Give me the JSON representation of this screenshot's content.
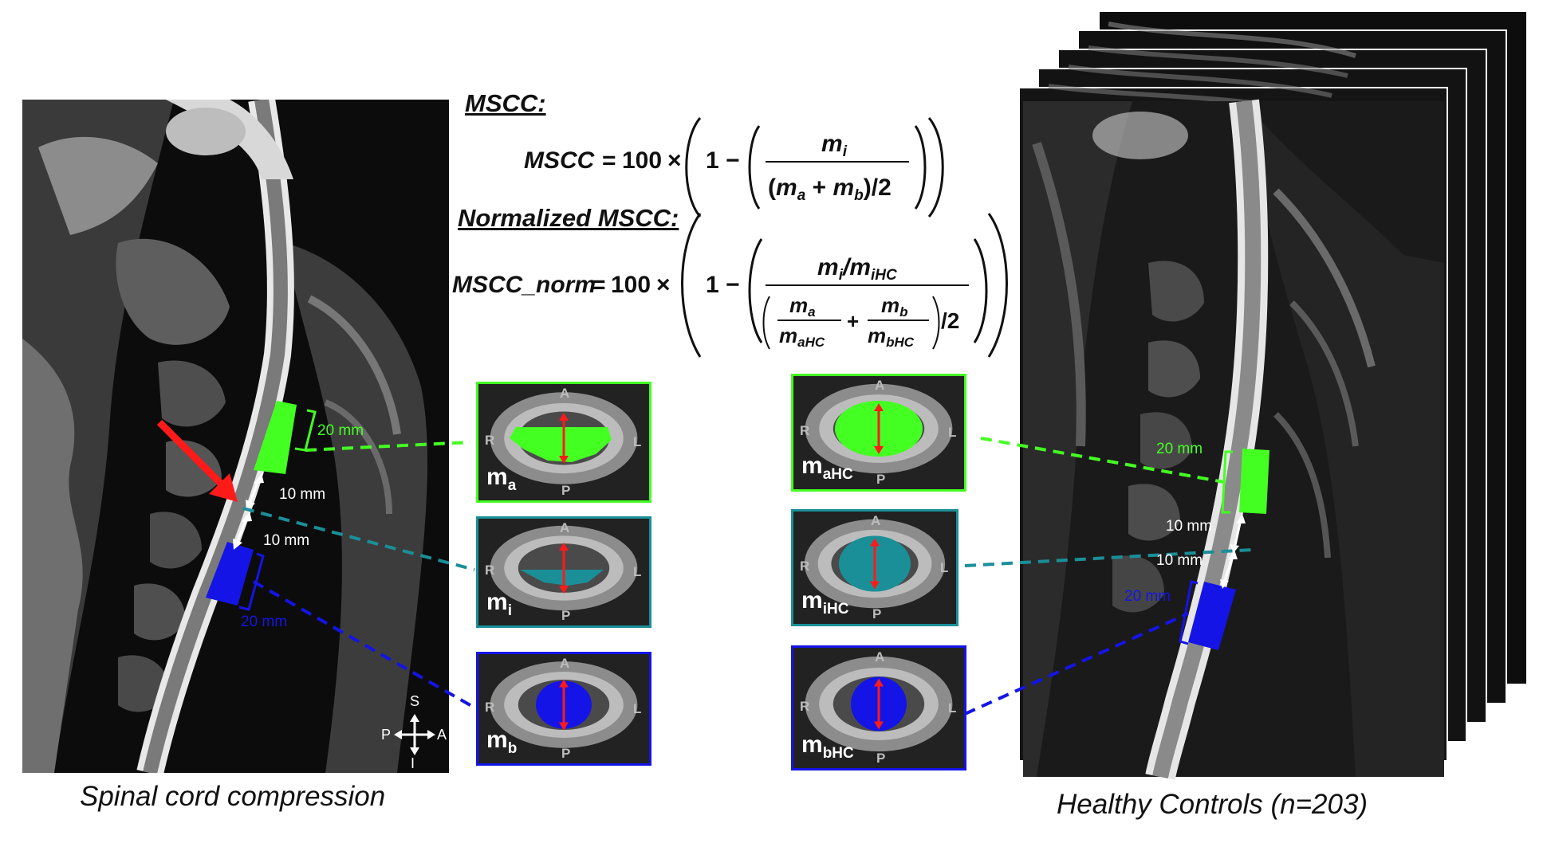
{
  "captions": {
    "left": "Spinal cord compression",
    "right": "Healthy Controls (n=203)"
  },
  "formulas": {
    "mscc_title": "MSCC:",
    "mscc_lhs": "MSCC",
    "norm_title": "Normalized MSCC:",
    "norm_lhs": "MSCC_norm",
    "const": "100",
    "one": "1"
  },
  "left_annotations": {
    "upper_len": "20 mm",
    "gap_upper": "10 mm",
    "gap_lower": "10 mm",
    "lower_len": "20 mm"
  },
  "right_annotations": {
    "upper_len": "20 mm",
    "gap_upper": "10 mm",
    "gap_lower": "10 mm",
    "lower_len": "20 mm"
  },
  "orientation": {
    "S": "S",
    "I": "I",
    "P": "P",
    "A": "A"
  },
  "tiles_left": [
    {
      "id": "ma",
      "m": "m",
      "sub": "a",
      "A": "A",
      "P": "P",
      "R": "R",
      "L": "L",
      "color": "#44ff22"
    },
    {
      "id": "mi",
      "m": "m",
      "sub": "i",
      "A": "A",
      "P": "P",
      "R": "R",
      "L": "L",
      "color": "#1a8f98"
    },
    {
      "id": "mb",
      "m": "m",
      "sub": "b",
      "A": "A",
      "P": "P",
      "R": "R",
      "L": "L",
      "color": "#1414e6"
    }
  ],
  "tiles_right": [
    {
      "id": "maHC",
      "m": "m",
      "sub": "aHC",
      "A": "A",
      "P": "P",
      "R": "R",
      "L": "L",
      "color": "#44ff22"
    },
    {
      "id": "miHC",
      "m": "m",
      "sub": "iHC",
      "A": "A",
      "P": "P",
      "R": "R",
      "L": "L",
      "color": "#1a8f98"
    },
    {
      "id": "mbHC",
      "m": "m",
      "sub": "bHC",
      "A": "A",
      "P": "P",
      "R": "R",
      "L": "L",
      "color": "#1414e6"
    }
  ],
  "colors": {
    "green": "#44ff22",
    "teal": "#1a8f98",
    "blue": "#1414e6",
    "red": "#ff1a1a"
  }
}
